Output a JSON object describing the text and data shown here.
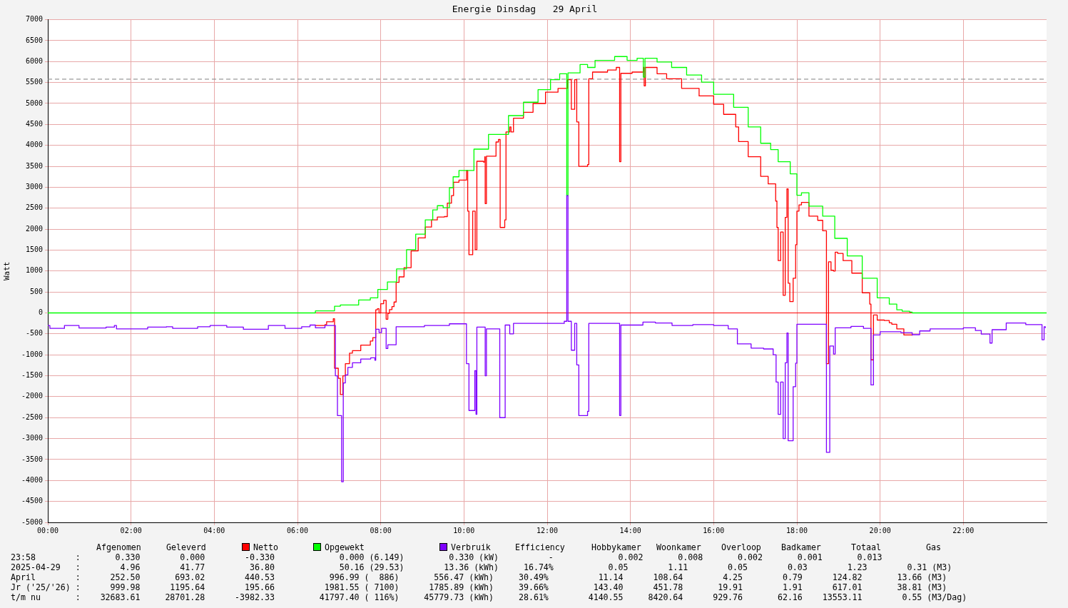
{
  "chart_data": {
    "type": "step",
    "title": "Energie Dinsdag   29 April",
    "ylabel": "Watt",
    "xlim": [
      0,
      24
    ],
    "ylim": [
      -5000,
      7000
    ],
    "xticks": [
      {
        "value": 0,
        "label": "00:00"
      },
      {
        "value": 2,
        "label": "02:00"
      },
      {
        "value": 4,
        "label": "04:00"
      },
      {
        "value": 6,
        "label": "06:00"
      },
      {
        "value": 8,
        "label": "08:00"
      },
      {
        "value": 10,
        "label": "10:00"
      },
      {
        "value": 12,
        "label": "12:00"
      },
      {
        "value": 14,
        "label": "14:00"
      },
      {
        "value": 16,
        "label": "16:00"
      },
      {
        "value": 18,
        "label": "18:00"
      },
      {
        "value": 20,
        "label": "20:00"
      },
      {
        "value": 22,
        "label": "22:00"
      }
    ],
    "yticks": [
      -5000,
      -4500,
      -4000,
      -3500,
      -3000,
      -2500,
      -2000,
      -1500,
      -1000,
      -500,
      0,
      500,
      1000,
      1500,
      2000,
      2500,
      3000,
      3500,
      4000,
      4500,
      5000,
      5500,
      6000,
      6500,
      7000
    ],
    "grid": true,
    "legend": "bottom",
    "marker": "none",
    "line_style": "solid",
    "ref_lines": [
      {
        "axis": "y",
        "value": 0,
        "color": "#ff0000",
        "line_style": "solid"
      },
      {
        "axis": "y",
        "value": 5580,
        "color": "#808080",
        "line_style": "dashed"
      }
    ],
    "series": [
      {
        "name": "Verbruik",
        "color": "#7f00ff",
        "x": [
          0,
          0.05,
          0.4,
          0.75,
          1.4,
          1.6,
          1.65,
          2.4,
          2.85,
          3.0,
          3.6,
          3.9,
          4.3,
          4.7,
          5.3,
          5.7,
          6.1,
          6.3,
          6.43,
          6.66,
          6.91,
          6.96,
          7.06,
          7.1,
          7.15,
          7.21,
          7.32,
          7.52,
          7.76,
          7.86,
          7.88,
          7.96,
          8.02,
          8.13,
          8.17,
          8.37,
          9.05,
          9.65,
          10.06,
          10.12,
          10.26,
          10.29,
          10.31,
          10.51,
          10.54,
          10.86,
          10.99,
          11.1,
          11.19,
          12.41,
          12.47,
          12.5,
          12.58,
          12.66,
          12.71,
          12.76,
          12.97,
          13.0,
          13.74,
          13.77,
          14.3,
          14.6,
          15.0,
          15.5,
          16.0,
          16.35,
          16.57,
          16.9,
          17.2,
          17.43,
          17.5,
          17.55,
          17.61,
          17.67,
          17.72,
          17.76,
          17.79,
          17.91,
          17.97,
          18.0,
          18.71,
          18.79,
          18.88,
          18.92,
          19.3,
          19.6,
          19.78,
          19.84,
          20.0,
          20.5,
          20.77,
          20.95,
          21.2,
          22.0,
          22.29,
          22.43,
          22.64,
          22.69,
          23.03,
          23.5,
          23.89,
          23.94,
          23.97
        ],
        "values": [
          -300,
          -370,
          -300,
          -360,
          -340,
          -300,
          -380,
          -340,
          -330,
          -370,
          -330,
          -300,
          -340,
          -390,
          -300,
          -370,
          -330,
          -290,
          -355,
          -300,
          -1500,
          -2450,
          -4030,
          -1670,
          -1480,
          -1300,
          -1190,
          -1100,
          -1070,
          -1130,
          -390,
          -470,
          -370,
          -850,
          -760,
          -330,
          -300,
          -260,
          -1210,
          -2330,
          -1380,
          -2420,
          -340,
          -1500,
          -380,
          -2500,
          -290,
          -500,
          -250,
          -200,
          2800,
          -200,
          -890,
          -250,
          -1240,
          -2450,
          -2350,
          -250,
          -2450,
          -290,
          -220,
          -240,
          -300,
          -280,
          -300,
          -380,
          -740,
          -840,
          -860,
          -1000,
          -1650,
          -2420,
          -1650,
          -3000,
          -1190,
          -480,
          -3050,
          -1760,
          -1200,
          -270,
          -3330,
          -790,
          -980,
          -355,
          -320,
          -370,
          -1720,
          -525,
          -450,
          -470,
          -520,
          -430,
          -380,
          -355,
          -420,
          -505,
          -720,
          -400,
          -240,
          -280,
          -640,
          -330,
          -360
        ]
      },
      {
        "name": "Opgewekt",
        "color": "#00ff00",
        "x": [
          0,
          6.43,
          6.89,
          7.03,
          7.47,
          7.75,
          7.93,
          8.16,
          8.38,
          8.62,
          8.84,
          9.07,
          9.25,
          9.36,
          9.5,
          9.65,
          9.74,
          9.88,
          10.24,
          10.59,
          11.07,
          11.43,
          11.78,
          12.08,
          12.3,
          12.47,
          12.5,
          12.79,
          12.97,
          13.15,
          13.62,
          13.92,
          14.16,
          14.31,
          14.35,
          14.64,
          14.99,
          15.35,
          15.71,
          16.0,
          16.48,
          16.83,
          17.13,
          17.37,
          17.55,
          17.84,
          18.0,
          18.11,
          18.29,
          18.62,
          18.91,
          19.21,
          19.57,
          19.93,
          20.22,
          20.4,
          20.53,
          20.71,
          20.77,
          24
        ],
        "values": [
          0,
          50,
          160,
          190,
          310,
          360,
          560,
          740,
          1050,
          1510,
          1880,
          2220,
          2460,
          2560,
          2510,
          2990,
          3250,
          3400,
          3910,
          4260,
          4710,
          5030,
          5330,
          5570,
          5710,
          2800,
          5730,
          5930,
          5860,
          6030,
          6120,
          6030,
          6080,
          5630,
          6080,
          5990,
          5860,
          5680,
          5510,
          5220,
          4910,
          4440,
          4050,
          3900,
          3610,
          3320,
          2810,
          2870,
          2550,
          2310,
          1780,
          1360,
          830,
          360,
          210,
          75,
          40,
          20,
          0,
          0
        ]
      },
      {
        "name": "Netto",
        "color": "#ff0000",
        "x": [
          6.43,
          6.66,
          6.7,
          6.86,
          6.89,
          6.98,
          7.03,
          7.09,
          7.15,
          7.25,
          7.32,
          7.52,
          7.75,
          7.81,
          7.88,
          7.92,
          7.96,
          8.0,
          8.07,
          8.13,
          8.17,
          8.21,
          8.27,
          8.32,
          8.37,
          8.44,
          8.56,
          8.73,
          8.9,
          9.07,
          9.22,
          9.36,
          9.53,
          9.6,
          9.7,
          9.75,
          9.88,
          10.06,
          10.09,
          10.12,
          10.21,
          10.27,
          10.31,
          10.47,
          10.5,
          10.51,
          10.54,
          10.77,
          10.83,
          10.87,
          10.98,
          11.01,
          11.1,
          11.13,
          11.19,
          11.43,
          11.66,
          11.96,
          12.26,
          12.49,
          12.58,
          12.66,
          12.71,
          12.76,
          12.97,
          13.0,
          13.09,
          13.45,
          13.66,
          13.74,
          13.77,
          14.04,
          14.31,
          14.33,
          14.36,
          14.64,
          14.87,
          15.23,
          15.65,
          16.0,
          16.24,
          16.53,
          16.6,
          16.83,
          17.13,
          17.31,
          17.49,
          17.52,
          17.55,
          17.61,
          17.67,
          17.72,
          17.76,
          17.79,
          17.83,
          17.91,
          17.97,
          18.0,
          18.05,
          18.11,
          18.29,
          18.5,
          18.62,
          18.71,
          18.76,
          18.82,
          18.88,
          18.92,
          18.98,
          19.11,
          19.32,
          19.57,
          19.75,
          19.78,
          19.84,
          19.93,
          20.1,
          20.22,
          20.28,
          20.4,
          20.57,
          20.77
        ],
        "values": [
          -300,
          -280,
          -210,
          -140,
          -1320,
          -1560,
          -1950,
          -1500,
          -1210,
          -960,
          -900,
          -770,
          -670,
          -590,
          75,
          100,
          0,
          220,
          300,
          -150,
          -10,
          80,
          150,
          260,
          730,
          860,
          1080,
          1480,
          1790,
          2050,
          2220,
          2290,
          2300,
          2620,
          2800,
          3120,
          3170,
          3400,
          2430,
          1390,
          2430,
          1510,
          3620,
          3600,
          3730,
          2610,
          3740,
          4080,
          4140,
          2040,
          2220,
          4320,
          4440,
          4320,
          4650,
          4790,
          5000,
          5270,
          5360,
          5570,
          4860,
          5570,
          4560,
          3500,
          3540,
          5590,
          5750,
          5800,
          5860,
          3610,
          5720,
          5750,
          5860,
          5420,
          5860,
          5710,
          5590,
          5360,
          5180,
          4980,
          4740,
          4440,
          4090,
          3730,
          3260,
          3080,
          2670,
          2040,
          1250,
          1930,
          420,
          2280,
          2960,
          710,
          270,
          830,
          1630,
          2430,
          2580,
          2640,
          2310,
          2210,
          1960,
          -1210,
          1220,
          1020,
          1000,
          1450,
          1420,
          1250,
          950,
          480,
          210,
          -1120,
          -50,
          -170,
          -180,
          -235,
          -270,
          -380,
          -525,
          -540
        ]
      }
    ],
    "annotations": [
      "Afgenomen",
      "Geleverd",
      "Efficiency",
      "Hobbykamer",
      "Woonkamer",
      "Overloop",
      "Badkamer",
      "Totaal",
      "Gas",
      "23:58        :       0.330        0.000        -0.330             0.000 (6.149)         0.330 (kW)          -             0.002       0.008       0.002       0.001       0.013",
      "2025-04-29   :        4.96        41.77         36.80             50.16 (29.53)        13.36 (kWh)     16.74%           0.05        1.11        0.05        0.03        1.23        0.31 (M3)",
      "April        :      252.50       693.02        440.53           996.99 (  886)       556.47 (kWh)     30.49%          11.14      108.64        4.25        0.79      124.82       13.66 (M3)",
      "Jr ('25/'26) :      999.98      1195.64        195.66          1981.55 ( 7100)      1785.89 (kWh)     39.66%         143.40      451.78       19.91        1.91      617.01       38.81 (M3)",
      "t/m nu       :    32683.61     28701.28      -3982.33         41797.40 ( 116%)     45779.73 (kWh)     28.61%        4140.55     8420.64      929.76       62.16    13553.11        0.55 (M3/Dag)"
    ]
  }
}
